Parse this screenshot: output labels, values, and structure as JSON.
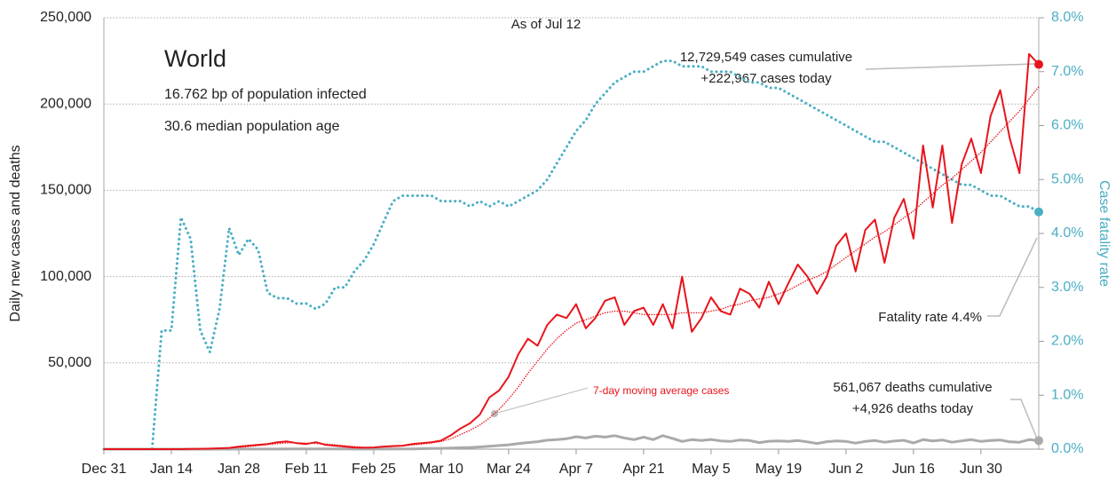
{
  "chart_data": {
    "type": "line",
    "title": "World",
    "subtitle": [
      "16.762 bp of population infected",
      "30.6 median population age"
    ],
    "annotations": {
      "as_of": "As of Jul 12",
      "cases": [
        "12,729,549 cases cumulative",
        "+222,967 cases today"
      ],
      "fatality": "Fatality rate 4.4%",
      "deaths": [
        "561,067 deaths cumulative",
        "+4,926 deaths today"
      ],
      "moving_average": "7-day moving average cases"
    },
    "ylabel": "Daily new cases and deaths",
    "y2label": "Case fatality rate",
    "categories": [
      "Dec 31",
      null,
      null,
      null,
      null,
      null,
      null,
      "Jan 14",
      null,
      null,
      null,
      null,
      null,
      null,
      "Jan 28",
      null,
      null,
      null,
      null,
      null,
      null,
      "Feb 11",
      null,
      null,
      null,
      null,
      null,
      null,
      "Feb 25",
      null,
      null,
      null,
      null,
      null,
      null,
      "Mar 10",
      null,
      null,
      null,
      null,
      null,
      null,
      "Mar 24",
      null,
      null,
      null,
      null,
      null,
      null,
      "Apr 7",
      null,
      null,
      null,
      null,
      null,
      null,
      "Apr 21",
      null,
      null,
      null,
      null,
      null,
      null,
      "May 5",
      null,
      null,
      null,
      null,
      null,
      null,
      "May 19",
      null,
      null,
      null,
      null,
      null,
      null,
      "Jun 2",
      null,
      null,
      null,
      null,
      null,
      null,
      "Jun 16",
      null,
      null,
      null,
      null,
      null,
      null,
      "Jun 30",
      null,
      null,
      null,
      null,
      null,
      null
    ],
    "series": [
      {
        "name": "Daily new cases",
        "color": "#e8141c",
        "linestyle": "solid",
        "width": 2,
        "axis": "y",
        "end_marker": true,
        "values": [
          0,
          0,
          0,
          0,
          0,
          0,
          0,
          0,
          0,
          100,
          200,
          300,
          500,
          700,
          1500,
          2000,
          2500,
          3000,
          4000,
          4500,
          3500,
          3000,
          4000,
          2500,
          2000,
          1500,
          1000,
          800,
          1000,
          1500,
          1800,
          2000,
          3000,
          3500,
          4000,
          5000,
          8000,
          12000,
          15000,
          20000,
          30000,
          34000,
          42000,
          55000,
          64000,
          60000,
          72000,
          78000,
          76000,
          84000,
          70000,
          76000,
          86000,
          88000,
          72000,
          80000,
          82000,
          72000,
          84000,
          70000,
          100000,
          68000,
          76000,
          88000,
          80000,
          78000,
          93000,
          90000,
          82000,
          97000,
          84000,
          96000,
          107000,
          100000,
          90000,
          100000,
          118000,
          125000,
          103000,
          127000,
          133000,
          108000,
          134000,
          145000,
          122000,
          176000,
          140000,
          176000,
          131000,
          165000,
          180000,
          160000,
          193000,
          208000,
          180000,
          160000,
          229000,
          222967
        ]
      },
      {
        "name": "7-day moving average cases",
        "color": "#e8141c",
        "linestyle": "dotted",
        "width": 1.5,
        "axis": "y",
        "end_marker": false,
        "values": [
          0,
          0,
          0,
          0,
          0,
          0,
          0,
          0,
          0,
          100,
          150,
          250,
          400,
          600,
          1000,
          1500,
          2000,
          2600,
          3200,
          3600,
          3700,
          3500,
          3300,
          3000,
          2500,
          2000,
          1500,
          1100,
          1000,
          1200,
          1500,
          1900,
          2400,
          3000,
          3600,
          4500,
          6000,
          8500,
          11000,
          14000,
          18000,
          23000,
          29000,
          36000,
          44000,
          51000,
          58000,
          64000,
          69000,
          73000,
          75000,
          77000,
          79000,
          80000,
          80000,
          79000,
          78000,
          78000,
          78000,
          78000,
          79000,
          79000,
          79000,
          80000,
          81000,
          83000,
          84000,
          86000,
          87000,
          88000,
          90000,
          92000,
          95000,
          98000,
          100000,
          103000,
          107000,
          111000,
          115000,
          119000,
          123000,
          126000,
          130000,
          134000,
          138000,
          143000,
          148000,
          153000,
          157000,
          162000,
          167000,
          172000,
          178000,
          184000,
          190000,
          196000,
          203000,
          210000
        ]
      },
      {
        "name": "Daily new deaths",
        "color": "#aaaaaa",
        "linestyle": "solid",
        "width": 3,
        "axis": "y",
        "end_marker": true,
        "values": [
          0,
          0,
          0,
          0,
          0,
          0,
          0,
          0,
          0,
          0,
          0,
          0,
          0,
          0,
          30,
          40,
          50,
          60,
          70,
          80,
          90,
          100,
          120,
          120,
          100,
          80,
          60,
          50,
          60,
          70,
          80,
          100,
          150,
          250,
          350,
          450,
          600,
          800,
          1000,
          1300,
          1700,
          2100,
          2500,
          3200,
          3800,
          4300,
          5200,
          5500,
          6000,
          7200,
          6500,
          7500,
          7000,
          7800,
          6500,
          5500,
          7000,
          5500,
          7800,
          6200,
          4500,
          5500,
          5000,
          5600,
          4800,
          4500,
          5300,
          5000,
          3800,
          4600,
          4800,
          4500,
          5000,
          4200,
          3300,
          4300,
          4800,
          4500,
          3500,
          4500,
          5000,
          4000,
          4700,
          5100,
          3600,
          5500,
          4800,
          5300,
          4000,
          4800,
          5500,
          4500,
          5000,
          5300,
          4200,
          4000,
          5500,
          4926
        ]
      },
      {
        "name": "Case fatality rate",
        "color": "#4aaec4",
        "linestyle": "dotted",
        "width": 3,
        "axis": "y2",
        "end_marker": true,
        "values": [
          0,
          0,
          0,
          0,
          0,
          0,
          2.2,
          2.2,
          4.3,
          3.9,
          2.2,
          1.8,
          2.6,
          4.1,
          3.6,
          3.9,
          3.7,
          2.9,
          2.8,
          2.8,
          2.7,
          2.7,
          2.6,
          2.7,
          3.0,
          3.0,
          3.3,
          3.5,
          3.8,
          4.2,
          4.6,
          4.7,
          4.7,
          4.7,
          4.7,
          4.6,
          4.6,
          4.6,
          4.5,
          4.6,
          4.5,
          4.6,
          4.5,
          4.6,
          4.7,
          4.8,
          5.0,
          5.3,
          5.6,
          5.9,
          6.1,
          6.4,
          6.6,
          6.8,
          6.9,
          7.0,
          7.0,
          7.1,
          7.2,
          7.2,
          7.1,
          7.1,
          7.1,
          7.0,
          7.0,
          7.0,
          6.9,
          6.8,
          6.8,
          6.7,
          6.7,
          6.6,
          6.5,
          6.4,
          6.3,
          6.2,
          6.1,
          6.0,
          5.9,
          5.8,
          5.7,
          5.7,
          5.6,
          5.5,
          5.4,
          5.3,
          5.2,
          5.1,
          5.0,
          4.9,
          4.9,
          4.8,
          4.7,
          4.7,
          4.6,
          4.5,
          4.5,
          4.4
        ]
      }
    ],
    "ylim": [
      0,
      250000
    ],
    "yticks": [
      {
        "value": 50000,
        "label": "50,000"
      },
      {
        "value": 100000,
        "label": "100,000"
      },
      {
        "value": 150000,
        "label": "150,000"
      },
      {
        "value": 200000,
        "label": "200,000"
      },
      {
        "value": 250000,
        "label": "250,000"
      }
    ],
    "y2lim": [
      0,
      8
    ],
    "y2ticks": [
      {
        "value": 0,
        "label": "0.0%"
      },
      {
        "value": 1,
        "label": "1.0%"
      },
      {
        "value": 2,
        "label": "2.0%"
      },
      {
        "value": 3,
        "label": "3.0%"
      },
      {
        "value": 4,
        "label": "4.0%"
      },
      {
        "value": 5,
        "label": "5.0%"
      },
      {
        "value": 6,
        "label": "6.0%"
      },
      {
        "value": 7,
        "label": "7.0%"
      },
      {
        "value": 8,
        "label": "8.0%"
      }
    ],
    "grid": true,
    "y2color": "#4aaec4"
  }
}
